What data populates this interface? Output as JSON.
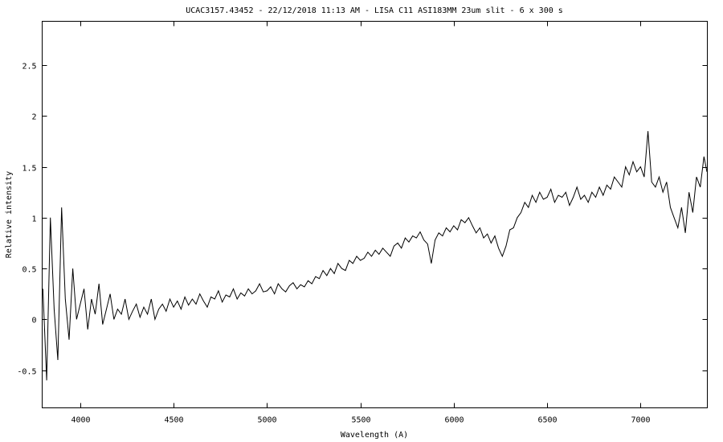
{
  "chart_data": {
    "type": "line",
    "title": "UCAC3157.43452 - 22/12/2018 11:13 AM - LISA C11 ASI183MM 23um slit - 6 x 300 s",
    "xlabel": "Wavelength (A)",
    "ylabel": "Relative intensity",
    "xlim": [
      3796,
      7358
    ],
    "ylim": [
      -0.87,
      2.93
    ],
    "xticks": [
      4000,
      4500,
      5000,
      5500,
      6000,
      6500,
      7000
    ],
    "yticks": [
      -0.5,
      0,
      0.5,
      1,
      1.5,
      2,
      2.5
    ],
    "xtick_labels": [
      "4000",
      "4500",
      "5000",
      "5500",
      "6000",
      "6500",
      "7000"
    ],
    "ytick_labels": [
      "-0.5",
      "0",
      "0.5",
      "1",
      "1.5",
      "2",
      "2.5"
    ],
    "grid": false,
    "line_color": "#000000",
    "x": [
      3800,
      3820,
      3840,
      3860,
      3880,
      3900,
      3920,
      3940,
      3960,
      3980,
      4000,
      4020,
      4040,
      4060,
      4080,
      4100,
      4120,
      4140,
      4160,
      4180,
      4200,
      4220,
      4240,
      4260,
      4280,
      4300,
      4320,
      4340,
      4360,
      4380,
      4400,
      4420,
      4440,
      4460,
      4480,
      4500,
      4520,
      4540,
      4560,
      4580,
      4600,
      4620,
      4640,
      4660,
      4680,
      4700,
      4720,
      4740,
      4760,
      4780,
      4800,
      4820,
      4840,
      4860,
      4880,
      4900,
      4920,
      4940,
      4960,
      4980,
      5000,
      5020,
      5040,
      5060,
      5080,
      5100,
      5120,
      5140,
      5160,
      5180,
      5200,
      5220,
      5240,
      5260,
      5280,
      5300,
      5320,
      5340,
      5360,
      5380,
      5400,
      5420,
      5440,
      5460,
      5480,
      5500,
      5520,
      5540,
      5560,
      5580,
      5600,
      5620,
      5640,
      5660,
      5680,
      5700,
      5720,
      5740,
      5760,
      5780,
      5800,
      5820,
      5840,
      5860,
      5880,
      5900,
      5920,
      5940,
      5960,
      5980,
      6000,
      6020,
      6040,
      6060,
      6080,
      6100,
      6120,
      6140,
      6160,
      6180,
      6200,
      6220,
      6240,
      6260,
      6280,
      6300,
      6320,
      6340,
      6360,
      6380,
      6400,
      6420,
      6440,
      6460,
      6480,
      6500,
      6520,
      6540,
      6560,
      6580,
      6600,
      6620,
      6640,
      6660,
      6680,
      6700,
      6720,
      6740,
      6760,
      6780,
      6800,
      6820,
      6840,
      6860,
      6880,
      6900,
      6920,
      6940,
      6960,
      6980,
      7000,
      7020,
      7040,
      7060,
      7080,
      7100,
      7120,
      7140,
      7160,
      7180,
      7200,
      7220,
      7240,
      7260,
      7280,
      7300,
      7320,
      7340,
      7356
    ],
    "y": [
      0.3,
      -0.6,
      1.0,
      0.1,
      -0.4,
      1.1,
      0.2,
      -0.2,
      0.5,
      0.0,
      0.15,
      0.3,
      -0.1,
      0.2,
      0.05,
      0.35,
      -0.05,
      0.1,
      0.25,
      0.0,
      0.1,
      0.05,
      0.2,
      0.0,
      0.08,
      0.15,
      0.02,
      0.12,
      0.05,
      0.2,
      0.0,
      0.1,
      0.15,
      0.08,
      0.2,
      0.12,
      0.18,
      0.1,
      0.22,
      0.14,
      0.2,
      0.15,
      0.25,
      0.18,
      0.12,
      0.22,
      0.2,
      0.28,
      0.17,
      0.24,
      0.22,
      0.3,
      0.2,
      0.26,
      0.23,
      0.3,
      0.25,
      0.28,
      0.35,
      0.27,
      0.28,
      0.32,
      0.25,
      0.35,
      0.3,
      0.27,
      0.33,
      0.36,
      0.3,
      0.34,
      0.32,
      0.38,
      0.35,
      0.42,
      0.4,
      0.48,
      0.43,
      0.5,
      0.45,
      0.55,
      0.5,
      0.48,
      0.58,
      0.55,
      0.62,
      0.58,
      0.6,
      0.66,
      0.62,
      0.68,
      0.64,
      0.7,
      0.66,
      0.62,
      0.72,
      0.75,
      0.7,
      0.8,
      0.76,
      0.82,
      0.8,
      0.86,
      0.78,
      0.74,
      0.55,
      0.78,
      0.85,
      0.82,
      0.9,
      0.86,
      0.92,
      0.88,
      0.98,
      0.95,
      1.0,
      0.92,
      0.85,
      0.9,
      0.8,
      0.84,
      0.75,
      0.82,
      0.7,
      0.62,
      0.72,
      0.88,
      0.9,
      1.0,
      1.05,
      1.15,
      1.1,
      1.22,
      1.15,
      1.25,
      1.18,
      1.2,
      1.28,
      1.15,
      1.22,
      1.2,
      1.25,
      1.12,
      1.2,
      1.3,
      1.18,
      1.22,
      1.15,
      1.25,
      1.2,
      1.3,
      1.22,
      1.32,
      1.28,
      1.4,
      1.35,
      1.3,
      1.5,
      1.42,
      1.55,
      1.45,
      1.5,
      1.4,
      1.85,
      1.35,
      1.3,
      1.4,
      1.25,
      1.35,
      1.1,
      1.0,
      0.9,
      1.1,
      0.85,
      1.25,
      1.05,
      1.4,
      1.3,
      1.6,
      1.45
    ]
  }
}
